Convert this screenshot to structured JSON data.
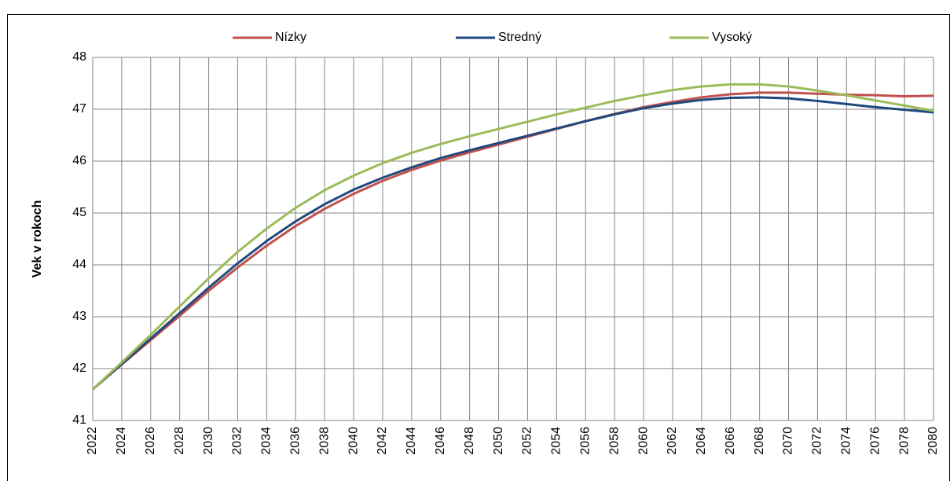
{
  "chart_data": {
    "type": "line",
    "y_label": "Vek v rokoch",
    "x": [
      2022,
      2024,
      2026,
      2028,
      2030,
      2032,
      2034,
      2036,
      2038,
      2040,
      2042,
      2044,
      2046,
      2048,
      2050,
      2052,
      2054,
      2056,
      2058,
      2060,
      2062,
      2064,
      2066,
      2068,
      2070,
      2072,
      2074,
      2076,
      2078,
      2080
    ],
    "series": [
      {
        "name": "Nízky",
        "color": "#c0504d",
        "values": [
          41.6,
          42.08,
          42.55,
          43.02,
          43.5,
          43.95,
          44.37,
          44.75,
          45.08,
          45.37,
          45.62,
          45.83,
          46.01,
          46.17,
          46.32,
          46.47,
          46.62,
          46.77,
          46.91,
          47.04,
          47.14,
          47.23,
          47.29,
          47.32,
          47.32,
          47.3,
          47.28,
          47.27,
          47.25,
          47.26
        ]
      },
      {
        "name": "Stredný",
        "color": "#1f497d",
        "values": [
          41.6,
          42.09,
          42.58,
          43.07,
          43.56,
          44.03,
          44.46,
          44.84,
          45.17,
          45.45,
          45.68,
          45.88,
          46.06,
          46.21,
          46.35,
          46.49,
          46.63,
          46.77,
          46.9,
          47.02,
          47.11,
          47.18,
          47.22,
          47.23,
          47.21,
          47.16,
          47.1,
          47.04,
          46.99,
          46.94
        ]
      },
      {
        "name": "Vysoký",
        "color": "#9bbb59",
        "values": [
          41.6,
          42.12,
          42.65,
          43.2,
          43.74,
          44.25,
          44.7,
          45.1,
          45.44,
          45.72,
          45.96,
          46.16,
          46.33,
          46.48,
          46.62,
          46.76,
          46.9,
          47.03,
          47.16,
          47.27,
          47.37,
          47.44,
          47.48,
          47.48,
          47.44,
          47.36,
          47.27,
          47.17,
          47.07,
          46.97
        ]
      }
    ],
    "xlim": [
      2022,
      2080
    ],
    "xticks": [
      2022,
      2024,
      2026,
      2028,
      2030,
      2032,
      2034,
      2036,
      2038,
      2040,
      2042,
      2044,
      2046,
      2048,
      2050,
      2052,
      2054,
      2056,
      2058,
      2060,
      2062,
      2064,
      2066,
      2068,
      2070,
      2072,
      2074,
      2076,
      2078,
      2080
    ],
    "ylim": [
      41,
      48
    ],
    "yticks": [
      41,
      42,
      43,
      44,
      45,
      46,
      47,
      48
    ],
    "grid": true
  }
}
